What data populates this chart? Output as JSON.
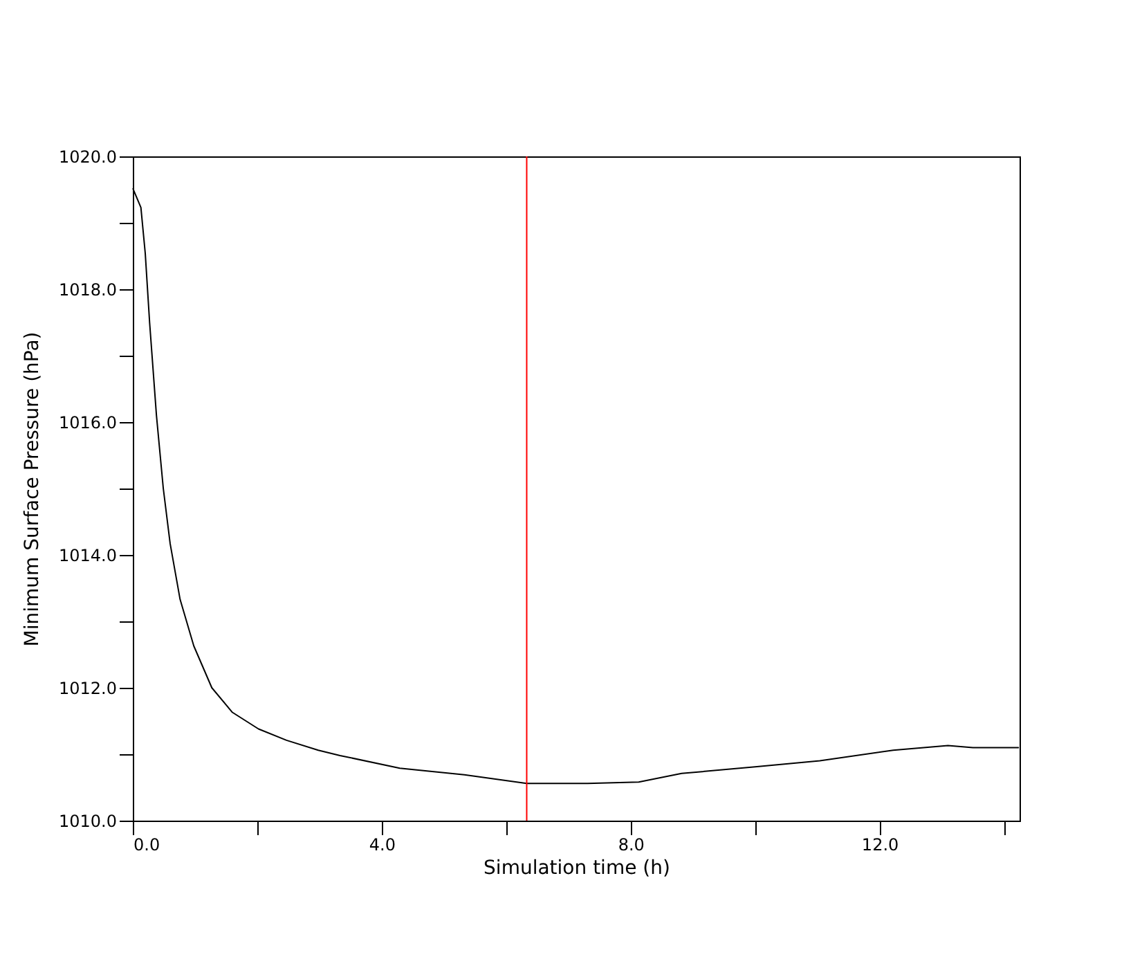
{
  "chart_data": {
    "type": "line",
    "xlabel": "Simulation time (h)",
    "ylabel": "Minimum Surface Pressure (hPa)",
    "xlim": [
      0,
      14.25
    ],
    "xticks": [
      {
        "value": 0,
        "label": "0.0"
      },
      {
        "value": 2,
        "label": null
      },
      {
        "value": 4,
        "label": "4.0"
      },
      {
        "value": 6,
        "label": null
      },
      {
        "value": 8,
        "label": "8.0"
      },
      {
        "value": 10,
        "label": null
      },
      {
        "value": 12,
        "label": "12.0"
      },
      {
        "value": 14,
        "label": null
      }
    ],
    "ylim": [
      1010,
      1020
    ],
    "yticks": [
      {
        "value": 1010,
        "label": "1010.0"
      },
      {
        "value": 1011,
        "label": null
      },
      {
        "value": 1012,
        "label": "1012.0"
      },
      {
        "value": 1013,
        "label": null
      },
      {
        "value": 1014,
        "label": "1014.0"
      },
      {
        "value": 1015,
        "label": null
      },
      {
        "value": 1016,
        "label": "1016.0"
      },
      {
        "value": 1017,
        "label": null
      },
      {
        "value": 1018,
        "label": "1018.0"
      },
      {
        "value": 1019,
        "label": null
      },
      {
        "value": 1020,
        "label": "1020.0"
      }
    ],
    "grid": false,
    "ref_lines": [
      {
        "axis": "x",
        "value": 6.33,
        "label": null,
        "color": "#ff0000"
      }
    ],
    "series": [
      {
        "color": "#000000",
        "x": [
          0,
          0.13,
          0.2,
          0.27,
          0.38,
          0.49,
          0.6,
          0.76,
          0.98,
          1.27,
          1.6,
          2.02,
          2.47,
          2.98,
          3.33,
          4.29,
          5.33,
          6.33,
          7.31,
          8.13,
          8.82,
          10.0,
          11.04,
          12.22,
          13.1,
          13.5,
          14.24
        ],
        "values": [
          1019.52,
          1019.23,
          1018.54,
          1017.5,
          1016.1,
          1015.0,
          1014.17,
          1013.33,
          1012.63,
          1012.0,
          1011.63,
          1011.38,
          1011.21,
          1011.06,
          1010.98,
          1010.79,
          1010.69,
          1010.56,
          1010.56,
          1010.58,
          1010.71,
          1010.81,
          1010.9,
          1011.06,
          1011.13,
          1011.1,
          1011.1
        ]
      }
    ]
  }
}
